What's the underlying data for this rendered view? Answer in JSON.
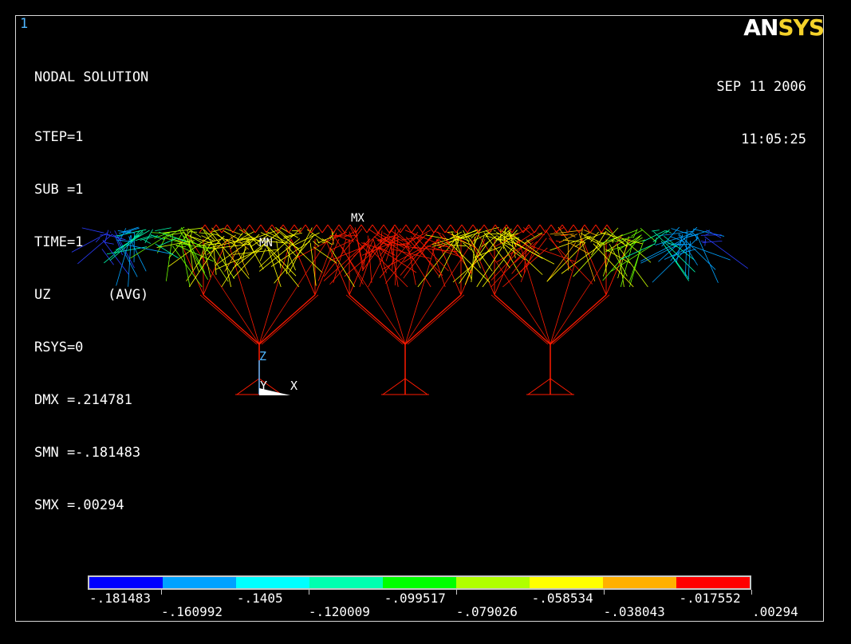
{
  "window_number": "1",
  "info": {
    "title": "NODAL SOLUTION",
    "lines": [
      "STEP=1",
      "SUB =1",
      "TIME=1",
      "UZ       (AVG)",
      "RSYS=0",
      "DMX =.214781",
      "SMN =-.181483",
      "SMX =.00294"
    ]
  },
  "logo": {
    "an": "AN",
    "sys": "SYS"
  },
  "date": "SEP 11 2006",
  "time": "11:05:25",
  "markers": {
    "max": "MX",
    "min": "MN"
  },
  "axes": {
    "z": "Z",
    "y": "Y",
    "x": "X"
  },
  "legend": {
    "colors": [
      "#0000ff",
      "#00a2ff",
      "#00ffff",
      "#00ffb0",
      "#00ff00",
      "#b0ff00",
      "#ffff00",
      "#ffb000",
      "#ff0000"
    ],
    "top_labels": [
      "-.181483",
      "-.1405",
      "-.099517",
      "-.058534",
      "-.017552"
    ],
    "bottom_labels": [
      "-.160992",
      "-.120009",
      "-.079026",
      "-.038043",
      ".00294"
    ]
  }
}
